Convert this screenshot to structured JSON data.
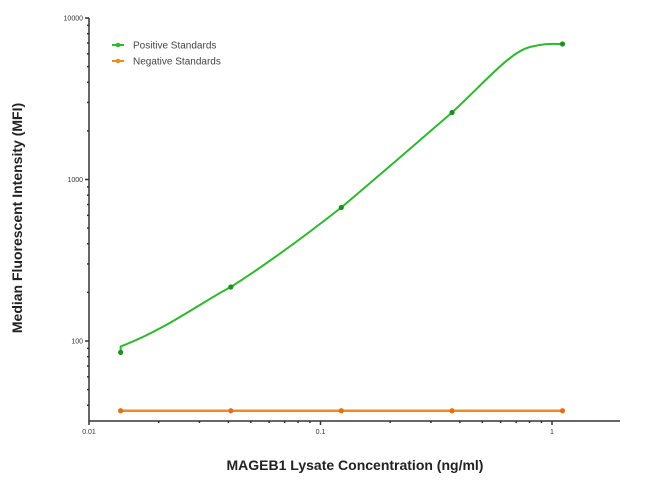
{
  "chart_data": {
    "type": "line",
    "title": "",
    "xlabel": "MAGEB1 Lysate Concentration (ng/ml)",
    "ylabel": "Median  Fluorescent Intensity  (MFI)",
    "xscale": "log",
    "yscale": "log",
    "xlim": [
      0.01,
      3
    ],
    "ylim": [
      32,
      10000
    ],
    "x_ticks": [
      0.01,
      0.1,
      1
    ],
    "x_tick_labels": [
      "0.01",
      "0.1",
      "1"
    ],
    "y_ticks": [
      100,
      1000,
      10000
    ],
    "y_tick_labels": [
      "100",
      "1000",
      "10000"
    ],
    "grid": false,
    "legend_position": "upper left",
    "x": [
      0.0137,
      0.041,
      0.123,
      0.37,
      1.11
    ],
    "series": [
      {
        "name": "Positive Standards",
        "color": "#2eb82e",
        "values": [
          85,
          216,
          671,
          2600,
          6900
        ],
        "fit": "smooth sigmoid curve"
      },
      {
        "name": "Negative Standards",
        "color": "#f08a24",
        "values": [
          37,
          37,
          37,
          37,
          37
        ],
        "fit": "flat line"
      }
    ]
  },
  "legend": {
    "items": [
      {
        "label": "Positive Standards",
        "color": "#2eb82e"
      },
      {
        "label": "Negative Standards",
        "color": "#f08a24"
      }
    ]
  }
}
